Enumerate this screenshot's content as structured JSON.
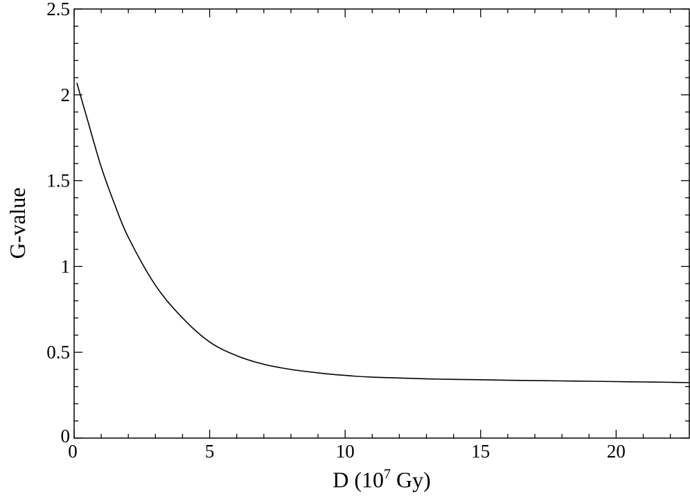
{
  "chart_data": {
    "type": "line",
    "title": "",
    "xlabel_prefix": "D (10",
    "xlabel_exponent": "7",
    "xlabel_suffix": " Gy)",
    "ylabel": "G-value",
    "xlim": [
      0,
      22.7
    ],
    "ylim": [
      0,
      2.5
    ],
    "x_ticks": [
      0,
      5,
      10,
      15,
      20
    ],
    "x_tick_labels": [
      "0",
      "5",
      "10",
      "15",
      "20"
    ],
    "y_ticks": [
      0,
      0.5,
      1,
      1.5,
      2,
      2.5
    ],
    "y_tick_labels": [
      "0",
      "0.5",
      "1",
      "1.5",
      "2",
      "2.5"
    ],
    "grid": false,
    "legend": "none",
    "series": [
      {
        "color": "#000000",
        "x": [
          0.1,
          0.5,
          1,
          1.5,
          2,
          3,
          4,
          5,
          6,
          7,
          8,
          9,
          10,
          11,
          12,
          13,
          14,
          15,
          16,
          17,
          18,
          19,
          20,
          21,
          22,
          22.7
        ],
        "y": [
          2.07,
          1.85,
          1.58,
          1.36,
          1.17,
          0.89,
          0.7,
          0.56,
          0.48,
          0.43,
          0.4,
          0.38,
          0.365,
          0.355,
          0.35,
          0.345,
          0.342,
          0.34,
          0.337,
          0.335,
          0.333,
          0.331,
          0.329,
          0.327,
          0.325,
          0.323
        ]
      }
    ]
  }
}
